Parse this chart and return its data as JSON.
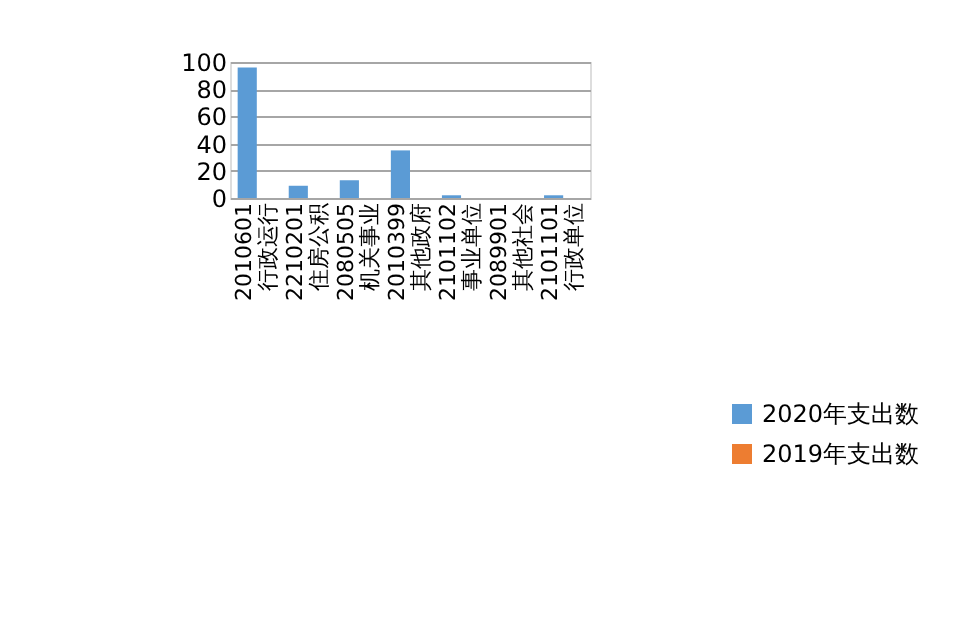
{
  "chart_data": {
    "type": "bar",
    "categories": [
      "2010601\n行政运行",
      "2210201\n住房公积",
      "2080505\n机关事业",
      "2010399\n其他政府",
      "2101102\n事业单位",
      "2089901\n其他社会",
      "2101101\n行政单位"
    ],
    "series": [
      {
        "name": "2020年支出数",
        "color": "#5b9bd5",
        "values": [
          96,
          9,
          13,
          35,
          2,
          0,
          2
        ]
      },
      {
        "name": "2019年支出数",
        "color": "#ed7d31",
        "values": [
          null,
          null,
          null,
          null,
          null,
          null,
          null
        ]
      }
    ],
    "ylim": [
      0,
      100
    ],
    "yticks": [
      0,
      20,
      40,
      60,
      80,
      100
    ],
    "grid": "y",
    "legend": "right"
  }
}
